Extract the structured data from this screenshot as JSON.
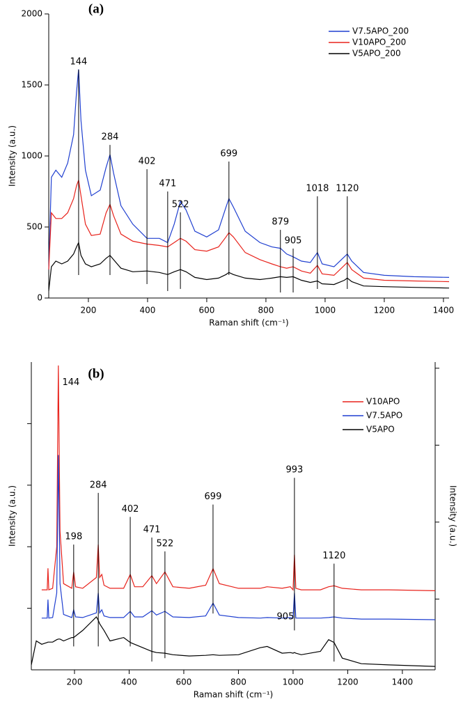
{
  "chart_data": [
    {
      "type": "line",
      "title": "(a)",
      "x_label": "Raman shift (cm⁻¹)",
      "y_label": "Intensity (a.u.)",
      "xlim": [
        66,
        1419
      ],
      "xticks": [
        200,
        400,
        600,
        800,
        1000,
        1200,
        1400
      ],
      "ylim": [
        0,
        2000
      ],
      "yticks": [
        0,
        500,
        1000,
        1500,
        2000
      ],
      "ytick_labels": true,
      "legend": "upper right",
      "x": [
        66,
        75,
        90,
        110,
        130,
        150,
        160,
        167,
        175,
        190,
        210,
        240,
        260,
        273,
        285,
        310,
        350,
        398,
        440,
        468,
        490,
        511,
        530,
        560,
        600,
        640,
        665,
        675,
        690,
        730,
        780,
        820,
        849,
        870,
        892,
        920,
        950,
        974,
        990,
        1030,
        1065,
        1075,
        1090,
        1130,
        1200,
        1300,
        1419
      ],
      "series": [
        {
          "name": "V7.5APO_200",
          "color": "#1f3fd0",
          "values": [
            200,
            850,
            900,
            850,
            950,
            1150,
            1450,
            1610,
            1250,
            900,
            720,
            760,
            920,
            1010,
            880,
            650,
            520,
            420,
            420,
            390,
            520,
            680,
            620,
            470,
            430,
            480,
            640,
            700,
            640,
            470,
            390,
            360,
            350,
            310,
            290,
            260,
            250,
            320,
            240,
            220,
            290,
            310,
            260,
            180,
            160,
            150,
            145
          ]
        },
        {
          "name": "V10APO_200",
          "color": "#e8221b",
          "values": [
            200,
            600,
            560,
            560,
            600,
            700,
            790,
            830,
            720,
            520,
            440,
            450,
            600,
            660,
            580,
            450,
            400,
            380,
            370,
            360,
            390,
            420,
            400,
            340,
            330,
            360,
            430,
            460,
            430,
            320,
            270,
            240,
            220,
            210,
            220,
            190,
            175,
            230,
            170,
            160,
            230,
            250,
            200,
            140,
            125,
            120,
            115
          ]
        },
        {
          "name": "V5APO_200",
          "color": "#000000",
          "values": [
            50,
            220,
            260,
            240,
            260,
            310,
            360,
            390,
            300,
            240,
            220,
            240,
            280,
            300,
            270,
            210,
            185,
            190,
            180,
            165,
            185,
            200,
            185,
            145,
            130,
            140,
            165,
            180,
            165,
            140,
            130,
            140,
            150,
            145,
            150,
            125,
            110,
            120,
            100,
            95,
            125,
            140,
            115,
            85,
            80,
            75,
            70
          ]
        }
      ],
      "peaks": [
        {
          "label": "144",
          "x": 167,
          "y1": 162,
          "y2": 1608
        },
        {
          "label": "284",
          "x": 273,
          "y1": 162,
          "y2": 1078
        },
        {
          "label": "402",
          "x": 398,
          "y1": 98,
          "y2": 907
        },
        {
          "label": "471",
          "x": 468,
          "y1": 49,
          "y2": 750
        },
        {
          "label": "522",
          "x": 511,
          "y1": 64,
          "y2": 603
        },
        {
          "label": "699",
          "x": 675,
          "y1": 162,
          "y2": 961
        },
        {
          "label": "879",
          "x": 849,
          "y1": 39,
          "y2": 480
        },
        {
          "label": "905",
          "x": 892,
          "y1": 39,
          "y2": 348
        },
        {
          "label": "1018",
          "x": 974,
          "y1": 64,
          "y2": 716
        },
        {
          "label": "1120",
          "x": 1075,
          "y1": 64,
          "y2": 716
        }
      ]
    },
    {
      "type": "line",
      "title": "(b)",
      "x_label": "Raman shift (cm⁻¹)",
      "y_label": "Intensity (a.u.)",
      "y2_label": "Intensity (a.u.)",
      "xlim": [
        42,
        1520
      ],
      "xticks": [
        200,
        400,
        600,
        800,
        1000,
        1200,
        1400
      ],
      "ylim": [
        0,
        100
      ],
      "yticks": [
        20,
        40,
        60,
        80
      ],
      "ytick_labels": false,
      "y2lim": [
        2,
        102
      ],
      "y2ticks": [
        25,
        50,
        75,
        100
      ],
      "legend": "upper right",
      "x": [
        42,
        60,
        80,
        100,
        103,
        106,
        120,
        135,
        141,
        147,
        160,
        190,
        197,
        204,
        230,
        280,
        287,
        292,
        300,
        308,
        330,
        380,
        404,
        420,
        450,
        483,
        500,
        531,
        560,
        620,
        680,
        707,
        730,
        800,
        880,
        905,
        960,
        990,
        1000,
        1005,
        1010,
        1030,
        1100,
        1130,
        1150,
        1180,
        1250,
        1350,
        1520
      ],
      "series": [
        {
          "name": "V10APO",
          "color": "#e8221b",
          "values": [
            null,
            null,
            26,
            26,
            33,
            26,
            26.5,
            40,
            98.9,
            45,
            28,
            26.5,
            31.8,
            27,
            26.5,
            30,
            40.7,
            30,
            31,
            27.5,
            26.5,
            26.5,
            31,
            27,
            27,
            30.6,
            28,
            31.8,
            27,
            26.5,
            27.5,
            32.9,
            28,
            26.5,
            26.5,
            27,
            26.5,
            27,
            26,
            37.4,
            26.5,
            26,
            26,
            27,
            27.3,
            26.5,
            26,
            26,
            25.7
          ]
        },
        {
          "name": "V7.5APO",
          "color": "#1f3fd0",
          "values": [
            null,
            null,
            16.8,
            16.8,
            22.8,
            16.8,
            17,
            25,
            69.8,
            28,
            18,
            17,
            19.5,
            17.2,
            17,
            18.5,
            25,
            18.5,
            19.5,
            17.5,
            17,
            17,
            19,
            17.2,
            17.2,
            19.2,
            17.8,
            19,
            17.2,
            17,
            17.5,
            21.7,
            17.8,
            17,
            16.8,
            17,
            16.8,
            17,
            16.8,
            25,
            16.8,
            16.8,
            16.8,
            17,
            17.2,
            16.8,
            16.5,
            16.5,
            16.3
          ]
        },
        {
          "name": "V5APO",
          "color": "#000000",
          "values": [
            1.6,
            9.4,
            8.3,
            8.9,
            9,
            9,
            9,
            9.8,
            10,
            10,
            9.4,
            10.5,
            10.5,
            11,
            12.8,
            17.2,
            16.1,
            15,
            13.9,
            12.8,
            9.4,
            10.5,
            8.9,
            8.3,
            7.2,
            6,
            5.6,
            5.4,
            4.9,
            4.5,
            4.7,
            4.9,
            4.7,
            4.9,
            7.2,
            7.6,
            5.4,
            5.6,
            5.4,
            5.6,
            5.4,
            4.9,
            6,
            9.8,
            8.9,
            3.8,
            2,
            1.6,
            1.1
          ]
        }
      ],
      "peaks": [
        {
          "label": "198",
          "x": 197,
          "y1": 7.6,
          "y2": 40.7
        },
        {
          "label": "284",
          "x": 287,
          "y1": 7.6,
          "y2": 57.5
        },
        {
          "label": "402",
          "x": 404,
          "y1": 7.6,
          "y2": 49.7
        },
        {
          "label": "471",
          "x": 483,
          "y1": 2.7,
          "y2": 43
        },
        {
          "label": "522",
          "x": 531,
          "y1": 3.8,
          "y2": 38.5
        },
        {
          "label": "699",
          "x": 707,
          "y1": 18.3,
          "y2": 53.7
        },
        {
          "label": "993",
          "x": 1005,
          "y1": 12.8,
          "y2": 62.4
        },
        {
          "label": "1120",
          "x": 1150,
          "y1": 2.7,
          "y2": 34.5
        }
      ],
      "labels": [
        {
          "text": "144",
          "x": 187,
          "y": 93.3
        },
        {
          "text": "905",
          "x": 972,
          "y": 17.2
        }
      ]
    }
  ]
}
